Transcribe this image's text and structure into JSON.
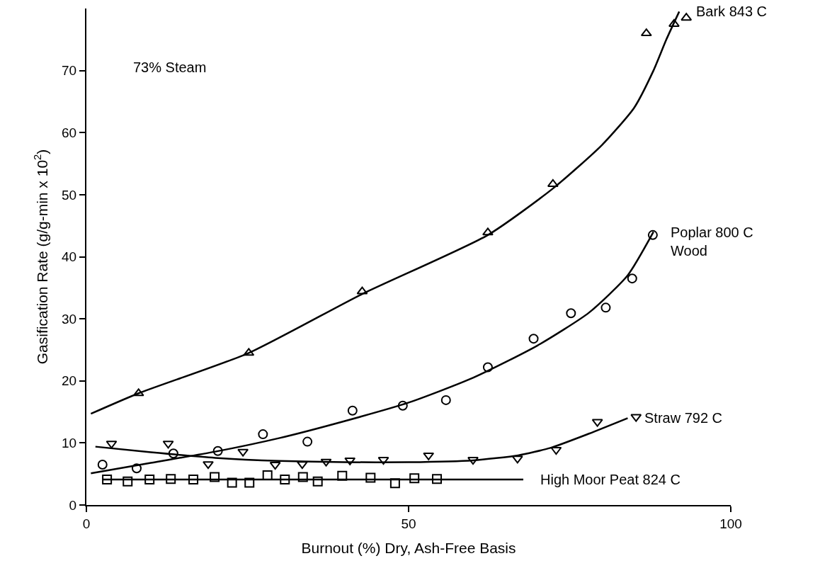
{
  "chart_data": {
    "type": "scatter",
    "xlabel": "Burnout (%) Dry, Ash-Free Basis",
    "ylabel": "Gasification Rate (g/g-min x 10$^{2}$)",
    "annotations": [
      "73% Steam"
    ],
    "xlim": [
      0,
      100
    ],
    "xticks": [
      0,
      50,
      100
    ],
    "ylim": [
      0,
      80
    ],
    "yticks": [
      0,
      10,
      20,
      30,
      40,
      50,
      60,
      70
    ],
    "grid": false,
    "legend": false,
    "series": [
      {
        "marker": "triangle",
        "color": "#000000",
        "x": [
          8.1,
          25.2,
          42.8,
          62.3,
          72.4,
          86.9,
          91.2,
          93.1
        ],
        "values": [
          18.0,
          24.5,
          34.4,
          43.9,
          51.7,
          76.0,
          77.5,
          78.5
        ]
      },
      {
        "type": "line",
        "name": "Bark 843 C",
        "color": "#000000",
        "x": [
          0.7,
          8.1,
          25.2,
          42.8,
          62.3,
          72.4,
          80,
          85,
          88,
          90,
          92
        ],
        "values": [
          14.7,
          18.0,
          24.5,
          34.0,
          43.5,
          51.0,
          58.0,
          64.0,
          70.0,
          75.0,
          79.5
        ]
      },
      {
        "marker": "circle",
        "color": "#000000",
        "x": [
          2.5,
          7.8,
          13.5,
          20.4,
          27.4,
          34.3,
          41.3,
          49.1,
          55.8,
          62.3,
          69.4,
          75.2,
          80.6,
          84.7,
          87.9
        ],
        "values": [
          6.5,
          5.9,
          8.3,
          8.7,
          11.4,
          10.2,
          15.2,
          16.0,
          16.9,
          22.2,
          26.8,
          30.9,
          31.8,
          36.5,
          43.5
        ]
      },
      {
        "type": "line",
        "name": "Poplar 800 C\nWood",
        "color": "#000000",
        "x": [
          0.7,
          10,
          20,
          30,
          40,
          50,
          60,
          70,
          78,
          84,
          88
        ],
        "values": [
          5.1,
          6.8,
          8.6,
          10.8,
          13.5,
          16.5,
          20.5,
          25.7,
          31.0,
          37.0,
          44.0
        ]
      },
      {
        "marker": "triangle-down",
        "color": "#000000",
        "x": [
          3.9,
          12.7,
          18.9,
          24.3,
          29.3,
          33.5,
          37.2,
          40.9,
          46.1,
          53.1,
          60.0,
          66.9,
          72.9,
          79.3,
          85.3
        ],
        "values": [
          9.9,
          9.9,
          6.6,
          8.6,
          6.5,
          6.6,
          7.0,
          7.2,
          7.3,
          8.0,
          7.3,
          7.5,
          8.9,
          13.4,
          14.2
        ]
      },
      {
        "type": "line",
        "name": "Straw 792 C",
        "color": "#000000",
        "x": [
          1.4,
          10,
          20,
          30,
          40,
          50,
          60,
          67,
          72,
          78,
          84
        ],
        "values": [
          9.4,
          8.5,
          7.6,
          7.1,
          6.9,
          6.9,
          7.2,
          8.0,
          9.2,
          11.5,
          14.0
        ]
      },
      {
        "marker": "square",
        "color": "#000000",
        "x": [
          3.2,
          6.4,
          9.8,
          13.1,
          16.6,
          19.9,
          22.6,
          25.3,
          28.1,
          30.8,
          33.6,
          35.9,
          39.7,
          44.1,
          47.9,
          50.9,
          54.4
        ],
        "values": [
          4.1,
          3.8,
          4.1,
          4.2,
          4.1,
          4.5,
          3.6,
          3.6,
          4.8,
          4.1,
          4.5,
          3.8,
          4.7,
          4.4,
          3.5,
          4.3,
          4.2
        ]
      },
      {
        "type": "line",
        "name": "High Moor Peat 824 C",
        "color": "#000000",
        "x": [
          2.5,
          67.8
        ],
        "values": [
          4.1,
          4.1
        ]
      }
    ]
  }
}
